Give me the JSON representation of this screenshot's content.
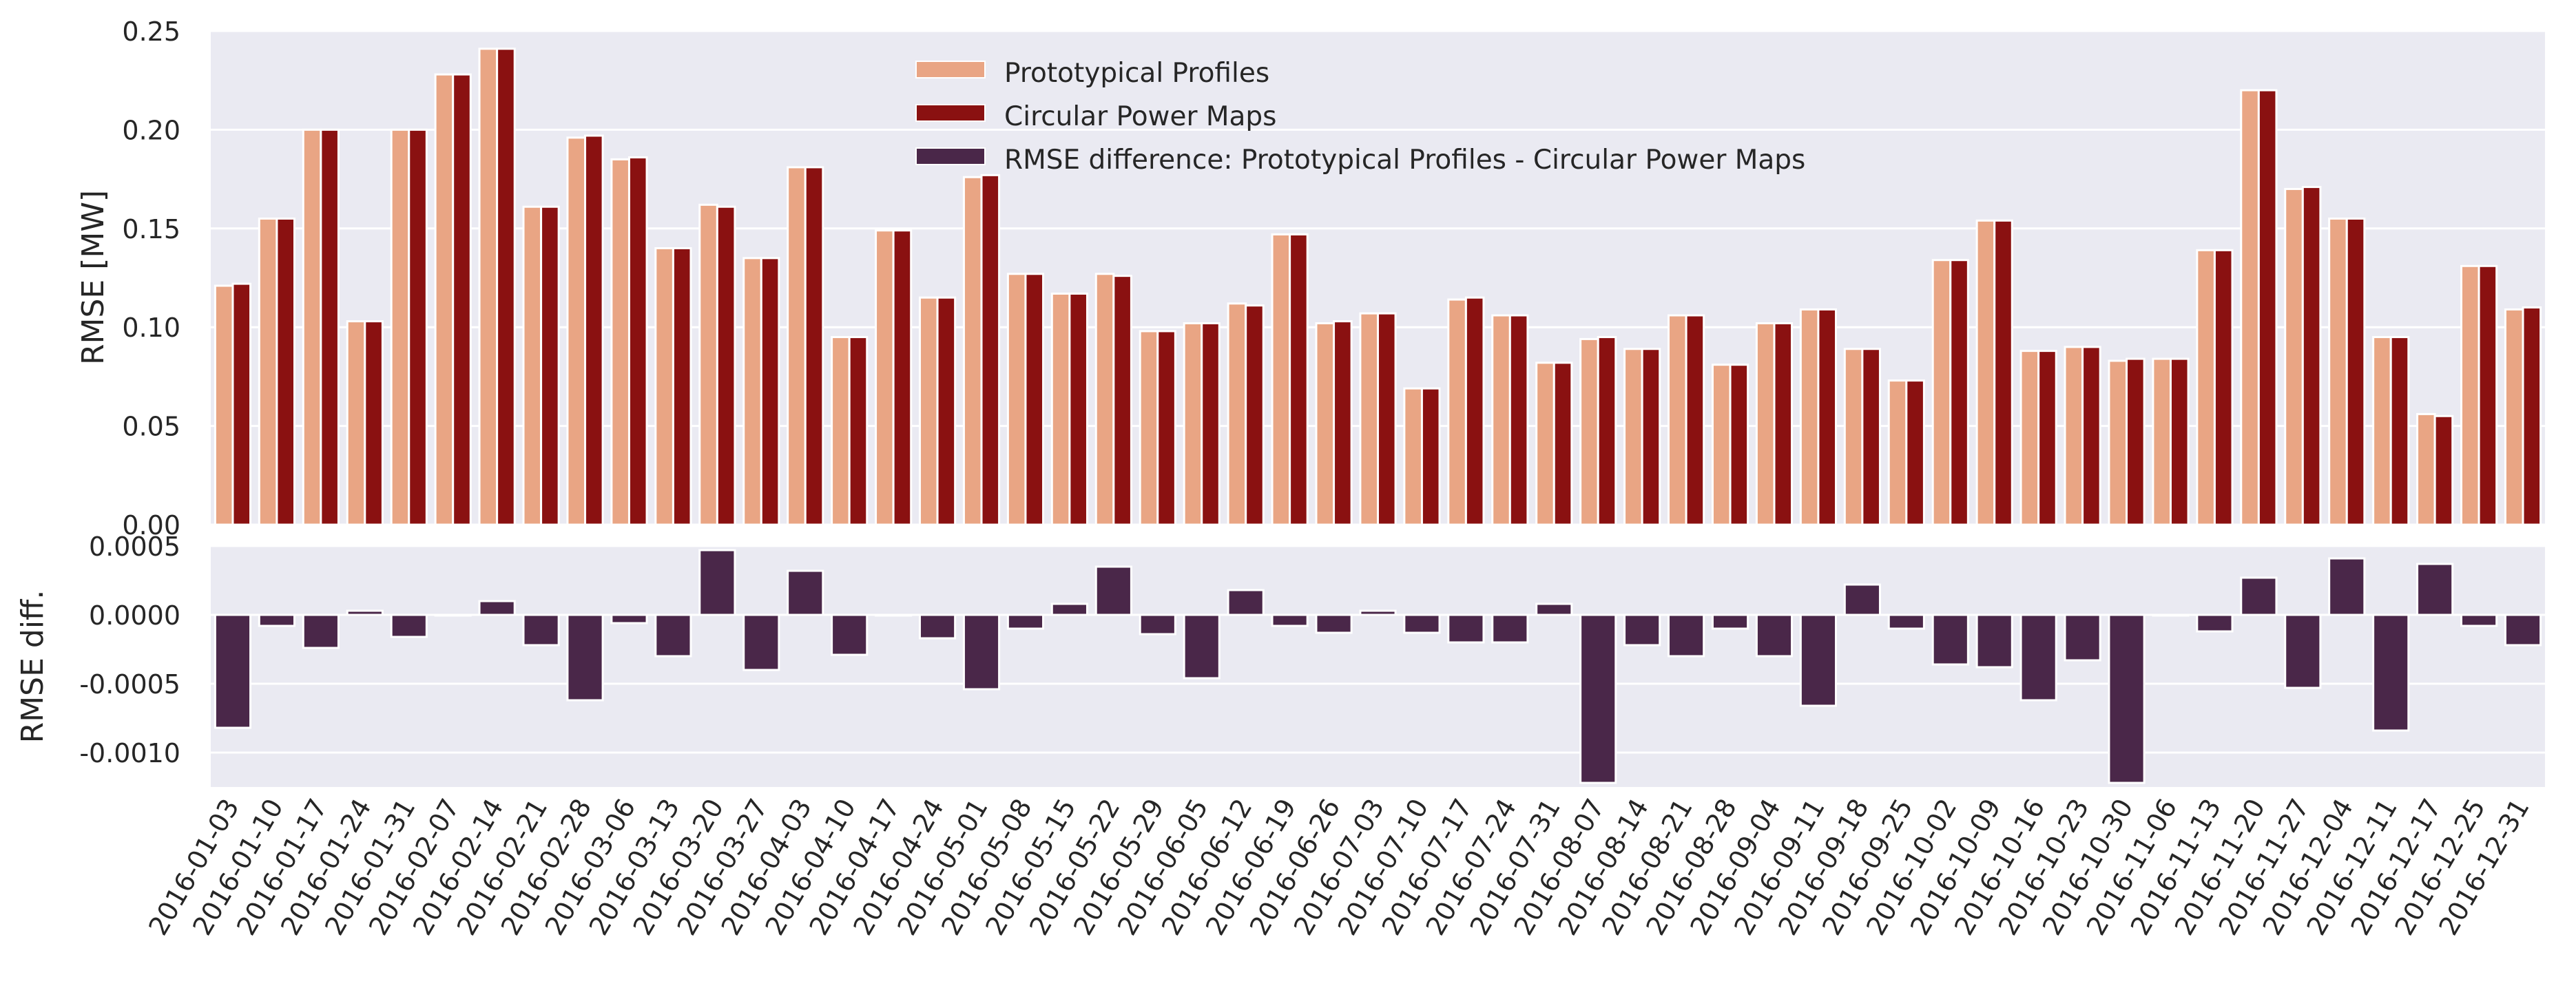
{
  "chart_data": [
    {
      "type": "bar",
      "ylabel": "RMSE [MW]",
      "xlabel": "",
      "ylim": [
        0,
        0.25
      ],
      "yticks": [
        "0.00",
        "0.05",
        "0.10",
        "0.15",
        "0.20",
        "0.25"
      ],
      "categories": [
        "2016-01-03",
        "2016-01-10",
        "2016-01-17",
        "2016-01-24",
        "2016-01-31",
        "2016-02-07",
        "2016-02-14",
        "2016-02-21",
        "2016-02-28",
        "2016-03-06",
        "2016-03-13",
        "2016-03-20",
        "2016-03-27",
        "2016-04-03",
        "2016-04-10",
        "2016-04-17",
        "2016-04-24",
        "2016-05-01",
        "2016-05-08",
        "2016-05-15",
        "2016-05-22",
        "2016-05-29",
        "2016-06-05",
        "2016-06-12",
        "2016-06-19",
        "2016-06-26",
        "2016-07-03",
        "2016-07-10",
        "2016-07-17",
        "2016-07-24",
        "2016-07-31",
        "2016-08-07",
        "2016-08-14",
        "2016-08-21",
        "2016-08-28",
        "2016-09-04",
        "2016-09-11",
        "2016-09-18",
        "2016-09-25",
        "2016-10-02",
        "2016-10-09",
        "2016-10-16",
        "2016-10-23",
        "2016-10-30",
        "2016-11-06",
        "2016-11-13",
        "2016-11-20",
        "2016-11-27",
        "2016-12-04",
        "2016-12-11",
        "2016-12-17",
        "2016-12-25",
        "2016-12-31"
      ],
      "series": [
        {
          "name": "Prototypical Profiles",
          "color": "#E9A584",
          "values": [
            0.121,
            0.155,
            0.2,
            0.103,
            0.2,
            0.228,
            0.241,
            0.161,
            0.196,
            0.185,
            0.14,
            0.162,
            0.135,
            0.181,
            0.095,
            0.149,
            0.115,
            0.176,
            0.127,
            0.117,
            0.127,
            0.098,
            0.102,
            0.112,
            0.147,
            0.102,
            0.107,
            0.069,
            0.114,
            0.106,
            0.082,
            0.094,
            0.089,
            0.106,
            0.081,
            0.102,
            0.109,
            0.089,
            0.073,
            0.134,
            0.154,
            0.088,
            0.09,
            0.083,
            0.084,
            0.139,
            0.22,
            0.17,
            0.155,
            0.095,
            0.056,
            0.131,
            0.109
          ]
        },
        {
          "name": "Circular Power Maps",
          "color": "#8A1111",
          "values": [
            0.122,
            0.155,
            0.2,
            0.103,
            0.2,
            0.228,
            0.241,
            0.161,
            0.197,
            0.186,
            0.14,
            0.161,
            0.135,
            0.181,
            0.095,
            0.149,
            0.115,
            0.177,
            0.127,
            0.117,
            0.126,
            0.098,
            0.102,
            0.111,
            0.147,
            0.103,
            0.107,
            0.069,
            0.115,
            0.106,
            0.082,
            0.095,
            0.089,
            0.106,
            0.081,
            0.102,
            0.109,
            0.089,
            0.073,
            0.134,
            0.154,
            0.088,
            0.09,
            0.084,
            0.084,
            0.139,
            0.22,
            0.171,
            0.155,
            0.095,
            0.055,
            0.131,
            0.11
          ]
        }
      ],
      "legend": {
        "position": "top-center",
        "entries": [
          "Prototypical Profiles",
          "Circular Power Maps",
          "RMSE difference: Prototypical Profiles - Circular Power Maps"
        ]
      }
    },
    {
      "type": "bar",
      "ylabel": "RMSE diff.",
      "xlabel": "",
      "ylim": [
        -0.00125,
        0.0005
      ],
      "yticks": [
        "0.0005",
        "0.0000",
        "-0.0005",
        "-0.0010"
      ],
      "series": [
        {
          "name": "RMSE difference: Prototypical Profiles - Circular Power Maps",
          "color": "#4A2749",
          "values": [
            -0.00082,
            -8e-05,
            -0.00024,
            3e-05,
            -0.00016,
            0.0,
            0.0001,
            -0.00022,
            -0.00062,
            -6e-05,
            -0.0003,
            0.00047,
            -0.0004,
            0.00032,
            -0.00029,
            0.0,
            -0.00017,
            -0.00054,
            -0.0001,
            8e-05,
            0.00035,
            -0.00014,
            -0.00046,
            0.00018,
            -8e-05,
            -0.00013,
            3e-05,
            -0.00013,
            -0.0002,
            -0.0002,
            8e-05,
            -0.00122,
            -0.00022,
            -0.0003,
            -0.0001,
            -0.0003,
            -0.00066,
            0.00022,
            -0.0001,
            -0.00036,
            -0.00038,
            -0.00062,
            -0.00033,
            -0.00122,
            0.0,
            -0.00012,
            0.00027,
            -0.00053,
            0.00041,
            -0.00084,
            0.00037,
            -8e-05,
            -0.00022
          ]
        }
      ]
    }
  ]
}
